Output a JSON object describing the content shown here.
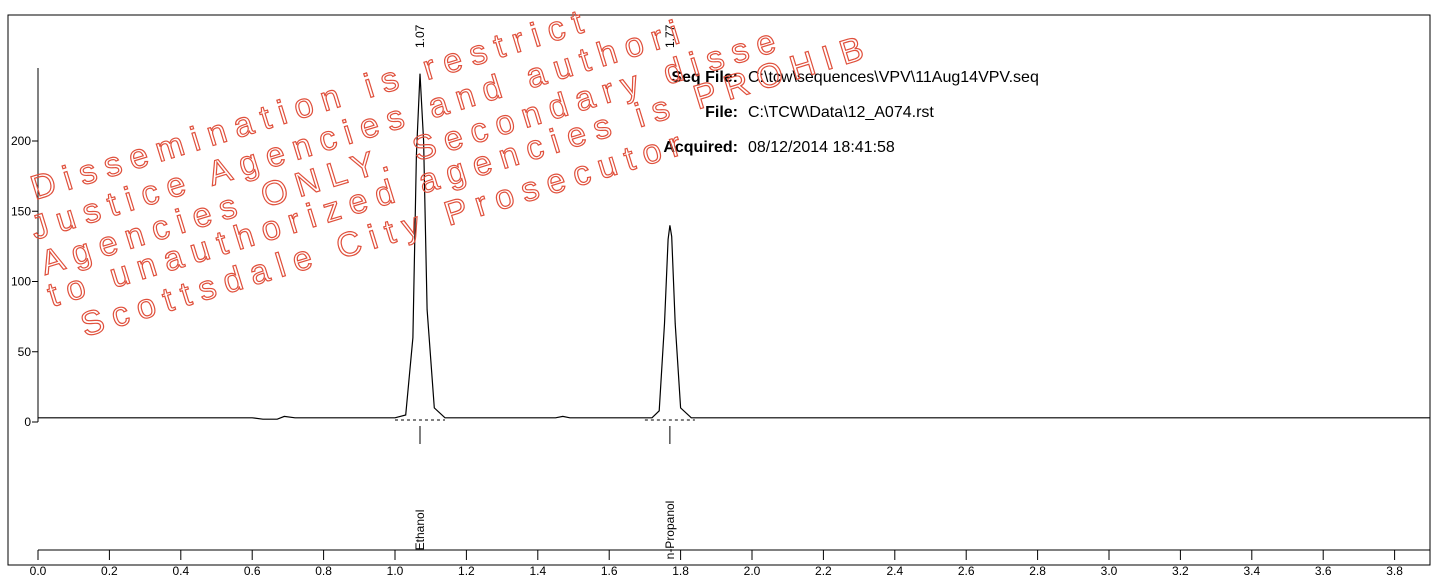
{
  "chart_data": {
    "type": "line",
    "x": [
      0,
      0.6,
      0.63,
      0.67,
      0.69,
      0.72,
      1.0,
      1.03,
      1.05,
      1.06,
      1.07,
      1.08,
      1.09,
      1.11,
      1.14,
      1.45,
      1.47,
      1.49,
      1.72,
      1.74,
      1.755,
      1.765,
      1.77,
      1.775,
      1.785,
      1.8,
      1.83,
      3.9
    ],
    "values": [
      3,
      3,
      2,
      2,
      4,
      3,
      3,
      5,
      60,
      190,
      248,
      200,
      80,
      10,
      3,
      3,
      4,
      3,
      3,
      8,
      70,
      130,
      140,
      132,
      70,
      10,
      3,
      3
    ],
    "color": "#000000",
    "xlim": [
      0,
      3.9
    ],
    "xticks": [
      {
        "value": 0,
        "label": "0.0"
      },
      {
        "value": 0.2,
        "label": "0.2"
      },
      {
        "value": 0.4,
        "label": "0.4"
      },
      {
        "value": 0.6,
        "label": "0.6"
      },
      {
        "value": 0.8,
        "label": "0.8"
      },
      {
        "value": 1,
        "label": "1.0"
      },
      {
        "value": 1.2,
        "label": "1.2"
      },
      {
        "value": 1.4,
        "label": "1.4"
      },
      {
        "value": 1.6,
        "label": "1.6"
      },
      {
        "value": 1.8,
        "label": "1.8"
      },
      {
        "value": 2,
        "label": "2.0"
      },
      {
        "value": 2.2,
        "label": "2.2"
      },
      {
        "value": 2.4,
        "label": "2.4"
      },
      {
        "value": 2.6,
        "label": "2.6"
      },
      {
        "value": 2.8,
        "label": "2.8"
      },
      {
        "value": 3,
        "label": "3.0"
      },
      {
        "value": 3.2,
        "label": "3.2"
      },
      {
        "value": 3.4,
        "label": "3.4"
      },
      {
        "value": 3.6,
        "label": "3.6"
      },
      {
        "value": 3.8,
        "label": "3.8"
      }
    ],
    "ylim": [
      0,
      252
    ],
    "yticks": [
      0,
      50,
      100,
      150,
      200
    ],
    "peaks": [
      {
        "time": 1.07,
        "name": "Ethanol"
      },
      {
        "time": 1.77,
        "name": "n-Propanol"
      }
    ],
    "info": [
      {
        "key": "Seq File:",
        "text": "C:\\tcw\\sequences\\VPV\\11Aug14VPV.seq"
      },
      {
        "key": "File:",
        "text": "C:\\TCW\\Data\\12_A074.rst"
      },
      {
        "key": "Acquired:",
        "text": "08/12/2014 18:41:58"
      }
    ],
    "watermark": [
      "Dissemination is restrict",
      "Justice Agencies and authori",
      "Agencies ONLY. Secondary disse",
      "to unauthorized agencies is PROHIB",
      "Scottsdale City Prosecutor"
    ]
  }
}
